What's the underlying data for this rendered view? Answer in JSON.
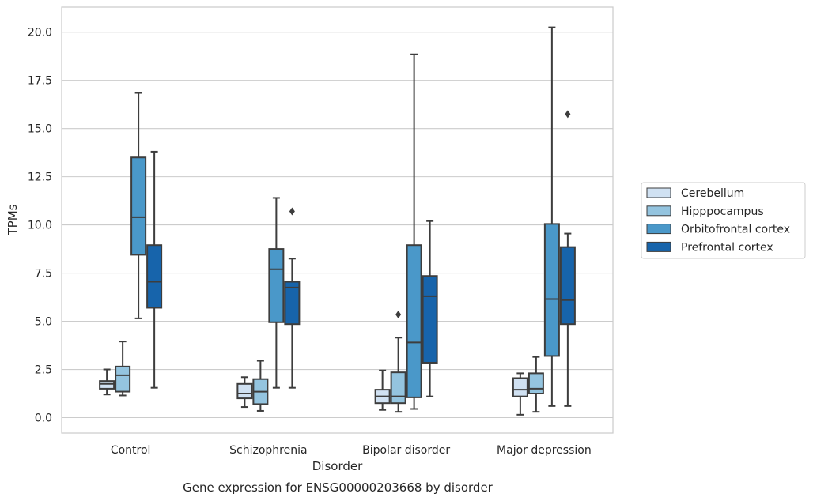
{
  "chart_data": {
    "type": "box",
    "xlabel": "Disorder",
    "ylabel": "TPMs",
    "caption": "Gene expression for ENSG00000203668 by disorder",
    "ylim": [
      -0.8,
      21.3
    ],
    "yticks": [
      "0.0",
      "2.5",
      "5.0",
      "7.5",
      "10.0",
      "12.5",
      "15.0",
      "17.5",
      "20.0"
    ],
    "ytick_values": [
      0,
      2.5,
      5,
      7.5,
      10,
      12.5,
      15,
      17.5,
      20
    ],
    "grid": "horizontal",
    "legend_position": "right",
    "categories": [
      "Control",
      "Schizophrenia",
      "Bipolar disorder",
      "Major depression"
    ],
    "series": [
      {
        "name": "Cerebellum",
        "color": "#d0e1f2",
        "boxes": [
          {
            "whislo": 1.2,
            "q1": 1.5,
            "med": 1.75,
            "q3": 1.9,
            "whishi": 2.5,
            "fliers": []
          },
          {
            "whislo": 0.55,
            "q1": 1.0,
            "med": 1.25,
            "q3": 1.75,
            "whishi": 2.1,
            "fliers": []
          },
          {
            "whislo": 0.4,
            "q1": 0.75,
            "med": 1.1,
            "q3": 1.45,
            "whishi": 2.45,
            "fliers": []
          },
          {
            "whislo": 0.15,
            "q1": 1.1,
            "med": 1.45,
            "q3": 2.05,
            "whishi": 2.3,
            "fliers": []
          }
        ]
      },
      {
        "name": "Hipppocampus",
        "color": "#94c4df",
        "boxes": [
          {
            "whislo": 1.15,
            "q1": 1.35,
            "med": 2.2,
            "q3": 2.65,
            "whishi": 3.95,
            "fliers": []
          },
          {
            "whislo": 0.35,
            "q1": 0.7,
            "med": 1.35,
            "q3": 2.0,
            "whishi": 2.95,
            "fliers": []
          },
          {
            "whislo": 0.3,
            "q1": 0.75,
            "med": 1.1,
            "q3": 2.35,
            "whishi": 4.15,
            "fliers": [
              5.35
            ]
          },
          {
            "whislo": 0.3,
            "q1": 1.25,
            "med": 1.5,
            "q3": 2.3,
            "whishi": 3.15,
            "fliers": []
          }
        ]
      },
      {
        "name": "Orbitofrontal cortex",
        "color": "#4a98c9",
        "boxes": [
          {
            "whislo": 5.15,
            "q1": 8.45,
            "med": 10.4,
            "q3": 13.5,
            "whishi": 16.85,
            "fliers": []
          },
          {
            "whislo": 1.55,
            "q1": 4.95,
            "med": 7.7,
            "q3": 8.75,
            "whishi": 11.4,
            "fliers": []
          },
          {
            "whislo": 0.45,
            "q1": 1.05,
            "med": 3.9,
            "q3": 8.95,
            "whishi": 18.85,
            "fliers": []
          },
          {
            "whislo": 0.6,
            "q1": 3.2,
            "med": 6.15,
            "q3": 10.05,
            "whishi": 20.25,
            "fliers": []
          }
        ]
      },
      {
        "name": "Prefrontal cortex",
        "color": "#1764ab",
        "boxes": [
          {
            "whislo": 1.55,
            "q1": 5.7,
            "med": 7.05,
            "q3": 8.95,
            "whishi": 13.8,
            "fliers": []
          },
          {
            "whislo": 1.55,
            "q1": 4.85,
            "med": 6.75,
            "q3": 7.05,
            "whishi": 8.25,
            "fliers": [
              10.7
            ]
          },
          {
            "whislo": 1.1,
            "q1": 2.85,
            "med": 6.3,
            "q3": 7.35,
            "whishi": 10.2,
            "fliers": []
          },
          {
            "whislo": 0.6,
            "q1": 4.85,
            "med": 6.1,
            "q3": 8.85,
            "whishi": 9.55,
            "fliers": [
              15.75
            ]
          }
        ]
      }
    ]
  }
}
